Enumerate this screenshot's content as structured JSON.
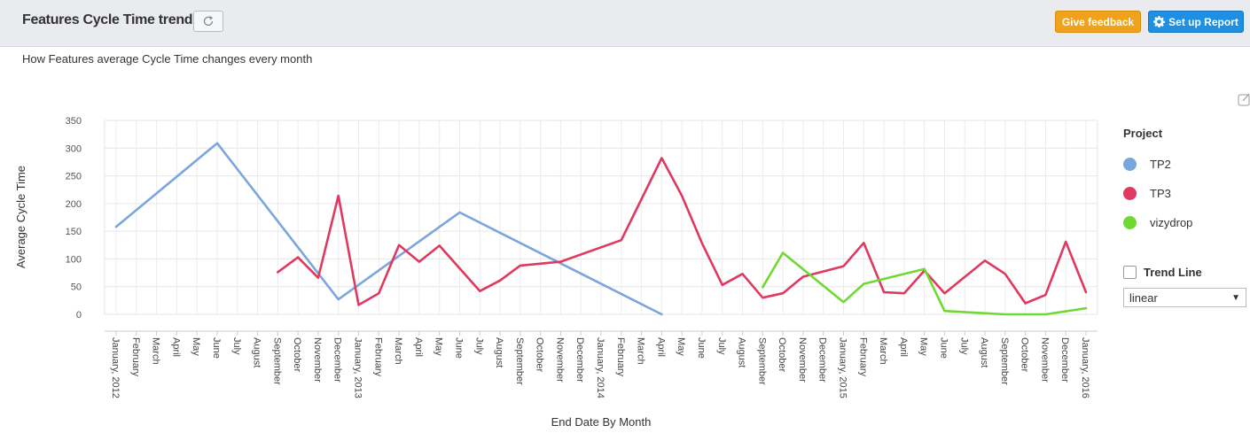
{
  "header": {
    "title": "Features Cycle Time trend",
    "feedback_label": "Give feedback",
    "setup_label": "Set up Report"
  },
  "subtitle": "How Features average Cycle Time changes every month",
  "legend": {
    "title": "Project",
    "items": [
      {
        "label": "TP2",
        "color": "#79a6dc"
      },
      {
        "label": "TP3",
        "color": "#e0395f"
      },
      {
        "label": "vizydrop",
        "color": "#6fd934"
      }
    ]
  },
  "trend": {
    "label": "Trend Line",
    "checked": false,
    "select_value": "linear"
  },
  "chart_data": {
    "type": "line",
    "xlabel": "End Date By Month",
    "ylabel": "Average Cycle Time",
    "ylim": [
      0,
      350
    ],
    "yticks": [
      0,
      50,
      100,
      150,
      200,
      250,
      300,
      350
    ],
    "categories": [
      "January, 2012",
      "February",
      "March",
      "April",
      "May",
      "June",
      "July",
      "August",
      "September",
      "October",
      "November",
      "December",
      "January, 2013",
      "February",
      "March",
      "April",
      "May",
      "June",
      "July",
      "August",
      "September",
      "October",
      "November",
      "December",
      "January, 2014",
      "February",
      "March",
      "April",
      "May",
      "June",
      "July",
      "August",
      "September",
      "October",
      "November",
      "December",
      "January, 2015",
      "February",
      "March",
      "April",
      "May",
      "June",
      "July",
      "August",
      "September",
      "October",
      "November",
      "December",
      "January, 2016"
    ],
    "grid": true,
    "legend_position": "right",
    "series": [
      {
        "name": "TP2",
        "color": "#79a6dc",
        "points": [
          [
            0,
            158
          ],
          [
            5,
            309
          ],
          [
            11,
            27
          ],
          [
            17,
            184
          ],
          [
            27,
            0
          ]
        ]
      },
      {
        "name": "TP3",
        "color": "#e0395f",
        "points": [
          [
            8,
            76
          ],
          [
            9,
            103
          ],
          [
            10,
            66
          ],
          [
            11,
            214
          ],
          [
            12,
            17
          ],
          [
            13,
            38
          ],
          [
            14,
            125
          ],
          [
            15,
            95
          ],
          [
            16,
            124
          ],
          [
            18,
            42
          ],
          [
            19,
            61
          ],
          [
            20,
            88
          ],
          [
            22,
            95
          ],
          [
            25,
            134
          ],
          [
            27,
            282
          ],
          [
            28,
            214
          ],
          [
            29,
            128
          ],
          [
            30,
            53
          ],
          [
            31,
            73
          ],
          [
            32,
            30
          ],
          [
            33,
            38
          ],
          [
            34,
            68
          ],
          [
            36,
            87
          ],
          [
            37,
            129
          ],
          [
            38,
            40
          ],
          [
            39,
            38
          ],
          [
            40,
            79
          ],
          [
            41,
            38
          ],
          [
            43,
            97
          ],
          [
            44,
            73
          ],
          [
            45,
            20
          ],
          [
            46,
            35
          ],
          [
            47,
            131
          ],
          [
            48,
            40
          ]
        ]
      },
      {
        "name": "vizydrop",
        "color": "#6fd934",
        "points": [
          [
            32,
            49
          ],
          [
            33,
            111
          ],
          [
            36,
            22
          ],
          [
            37,
            55
          ],
          [
            40,
            82
          ],
          [
            41,
            6
          ],
          [
            44,
            0
          ],
          [
            46,
            0
          ],
          [
            48,
            11
          ]
        ]
      }
    ]
  }
}
